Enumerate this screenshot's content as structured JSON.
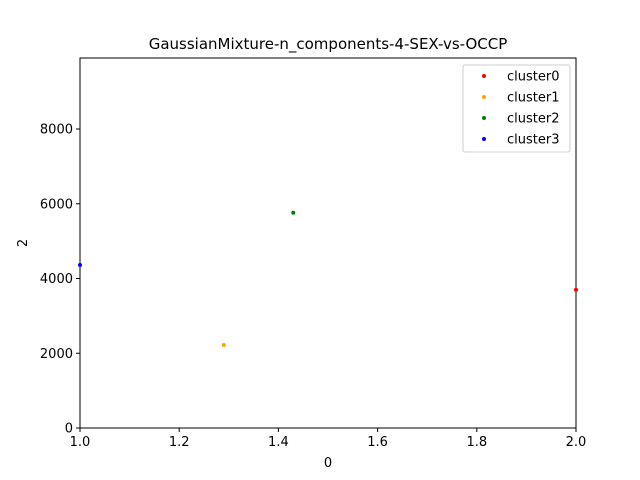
{
  "chart_data": {
    "type": "scatter",
    "title": "GaussianMixture-n_components-4-SEX-vs-OCCP",
    "xlabel": "0",
    "ylabel": "2",
    "xlim": [
      1.0,
      2.0
    ],
    "ylim": [
      0,
      9900
    ],
    "xticks": [
      1.0,
      1.2,
      1.4,
      1.6,
      1.8,
      2.0
    ],
    "xtick_labels": [
      "1.0",
      "1.2",
      "1.4",
      "1.6",
      "1.8",
      "2.0"
    ],
    "yticks": [
      0,
      2000,
      4000,
      6000,
      8000
    ],
    "ytick_labels": [
      "0",
      "2000",
      "4000",
      "6000",
      "8000"
    ],
    "grid": false,
    "legend_position": "top-right",
    "series": [
      {
        "name": "cluster0",
        "color": "#ff0000",
        "points": [
          {
            "x": 2.0,
            "y": 3700
          }
        ]
      },
      {
        "name": "cluster1",
        "color": "#ffa500",
        "points": [
          {
            "x": 1.29,
            "y": 2220
          }
        ]
      },
      {
        "name": "cluster2",
        "color": "#008000",
        "points": [
          {
            "x": 1.43,
            "y": 5760
          }
        ]
      },
      {
        "name": "cluster3",
        "color": "#0000ff",
        "points": [
          {
            "x": 1.0,
            "y": 4360
          }
        ]
      }
    ]
  }
}
